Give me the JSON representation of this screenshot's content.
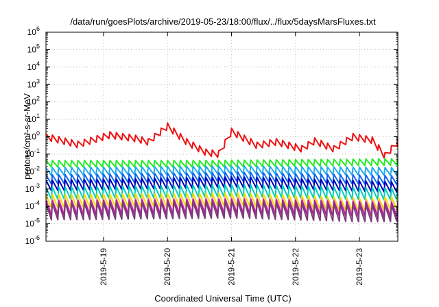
{
  "chart_data": {
    "type": "line",
    "title": "/data/run/goesPlots/archive/2019-05-23/18:00/flux/../flux/5daysMarsFluxes.txt",
    "xlabel": "Coordinated Universal Time (UTC)",
    "ylabel": "protons/cm²-s-sr-MeV",
    "y_scale": "log",
    "ylim_exponent": [
      -6,
      6
    ],
    "y_tick_base": "10",
    "y_tick_exponents": [
      "-6",
      "-5",
      "-4",
      "-3",
      "-2",
      "-1",
      "0",
      "1",
      "2",
      "3",
      "4",
      "5",
      "6"
    ],
    "x_range_days": [
      0,
      5.5
    ],
    "x_ticks": [
      {
        "x": 0.9,
        "label": "2019-5-19"
      },
      {
        "x": 1.9,
        "label": "2019-5-20"
      },
      {
        "x": 2.9,
        "label": "2019-5-21"
      },
      {
        "x": 3.9,
        "label": "2019-5-22"
      },
      {
        "x": 4.9,
        "label": "2019-5-23"
      }
    ],
    "grid": true,
    "series": [
      {
        "color": "#ee1111",
        "log10_anchors": [
          [
            0,
            0.0
          ],
          [
            0.5,
            -0.45
          ],
          [
            1.0,
            0.1
          ],
          [
            1.4,
            -0.1
          ],
          [
            1.6,
            -0.3
          ],
          [
            1.9,
            0.6
          ],
          [
            2.2,
            -0.3
          ],
          [
            2.5,
            -0.9
          ],
          [
            2.7,
            -1.0
          ],
          [
            2.9,
            0.3
          ],
          [
            3.3,
            -0.5
          ],
          [
            3.6,
            -0.3
          ],
          [
            4.0,
            -0.7
          ],
          [
            4.2,
            -0.25
          ],
          [
            4.5,
            -0.7
          ],
          [
            4.8,
            0.0
          ],
          [
            5.1,
            -0.2
          ],
          [
            5.3,
            -1.1
          ],
          [
            5.5,
            -0.3
          ]
        ],
        "sawtooth_period": 0.1,
        "sawtooth_amp": 0.38
      },
      {
        "color": "#22ee22",
        "log10_anchors": [
          [
            0,
            -1.55
          ],
          [
            2.5,
            -1.55
          ],
          [
            5.5,
            -1.45
          ]
        ],
        "sawtooth_period": 0.1,
        "sawtooth_amp": 0.38
      },
      {
        "color": "#22aaee",
        "log10_anchors": [
          [
            0,
            -2.0
          ],
          [
            3.0,
            -1.9
          ],
          [
            5.5,
            -2.0
          ]
        ],
        "sawtooth_period": 0.1,
        "sawtooth_amp": 0.45
      },
      {
        "color": "#1166ee",
        "log10_anchors": [
          [
            0,
            -2.45
          ],
          [
            3.0,
            -2.3
          ],
          [
            5.5,
            -2.5
          ]
        ],
        "sawtooth_period": 0.1,
        "sawtooth_amp": 0.52
      },
      {
        "color": "#0000bb",
        "log10_anchors": [
          [
            0,
            -2.8
          ],
          [
            3.0,
            -2.6
          ],
          [
            5.5,
            -2.9
          ]
        ],
        "sawtooth_period": 0.1,
        "sawtooth_amp": 0.6
      },
      {
        "color": "#00ccbb",
        "log10_anchors": [
          [
            0,
            -3.25
          ],
          [
            3.0,
            -3.1
          ],
          [
            5.5,
            -3.3
          ]
        ],
        "sawtooth_period": 0.1,
        "sawtooth_amp": 0.7
      },
      {
        "color": "#eedd00",
        "log10_anchors": [
          [
            0,
            -3.7
          ],
          [
            3.0,
            -3.6
          ],
          [
            5.0,
            -3.9
          ],
          [
            5.5,
            -3.8
          ]
        ],
        "sawtooth_period": 0.1,
        "sawtooth_amp": 0.75
      },
      {
        "color": "#ff88cc",
        "log10_anchors": [
          [
            0,
            -4.0
          ],
          [
            3.0,
            -3.9
          ],
          [
            5.5,
            -4.1
          ]
        ],
        "sawtooth_period": 0.1,
        "sawtooth_amp": 0.8
      },
      {
        "color": "#aa2299",
        "log10_anchors": [
          [
            0,
            -4.1
          ],
          [
            3.0,
            -4.0
          ],
          [
            5.5,
            -4.2
          ]
        ],
        "sawtooth_period": 0.1,
        "sawtooth_amp": 0.85
      },
      {
        "color": "#7a3d7a",
        "log10_anchors": [
          [
            0,
            -4.3
          ],
          [
            3.0,
            -4.2
          ],
          [
            4.8,
            -4.4
          ],
          [
            5.5,
            -4.4
          ]
        ],
        "sawtooth_period": 0.1,
        "sawtooth_amp": 0.95
      }
    ]
  }
}
